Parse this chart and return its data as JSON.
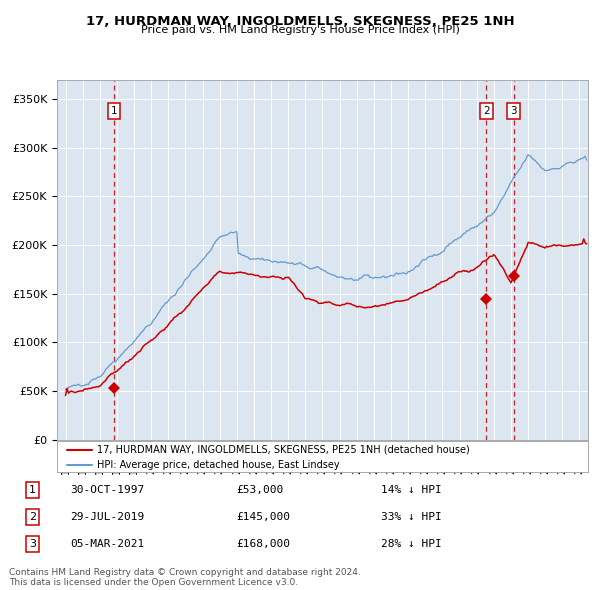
{
  "title": "17, HURDMAN WAY, INGOLDMELLS, SKEGNESS, PE25 1NH",
  "subtitle": "Price paid vs. HM Land Registry's House Price Index (HPI)",
  "bg_color": "#dce6f1",
  "red_line_color": "#cc0000",
  "blue_line_color": "#6699cc",
  "sale_marker_color": "#cc0000",
  "dashed_line_color": "#cc0000",
  "sales": [
    {
      "date_num": 1997.83,
      "price": 53000,
      "label": "1"
    },
    {
      "date_num": 2019.57,
      "price": 145000,
      "label": "2"
    },
    {
      "date_num": 2021.17,
      "price": 168000,
      "label": "3"
    }
  ],
  "legend_entries": [
    "17, HURDMAN WAY, INGOLDMELLS, SKEGNESS, PE25 1NH (detached house)",
    "HPI: Average price, detached house, East Lindsey"
  ],
  "table_rows": [
    {
      "num": "1",
      "date": "30-OCT-1997",
      "price": "£53,000",
      "pct": "14% ↓ HPI"
    },
    {
      "num": "2",
      "date": "29-JUL-2019",
      "price": "£145,000",
      "pct": "33% ↓ HPI"
    },
    {
      "num": "3",
      "date": "05-MAR-2021",
      "price": "£168,000",
      "pct": "28% ↓ HPI"
    }
  ],
  "footer": "Contains HM Land Registry data © Crown copyright and database right 2024.\nThis data is licensed under the Open Government Licence v3.0.",
  "ylim": [
    0,
    370000
  ],
  "yticks": [
    0,
    50000,
    100000,
    150000,
    200000,
    250000,
    300000,
    350000
  ],
  "ytick_labels": [
    "£0",
    "£50K",
    "£100K",
    "£150K",
    "£200K",
    "£250K",
    "£300K",
    "£350K"
  ],
  "xlim_start": 1994.5,
  "xlim_end": 2025.5
}
